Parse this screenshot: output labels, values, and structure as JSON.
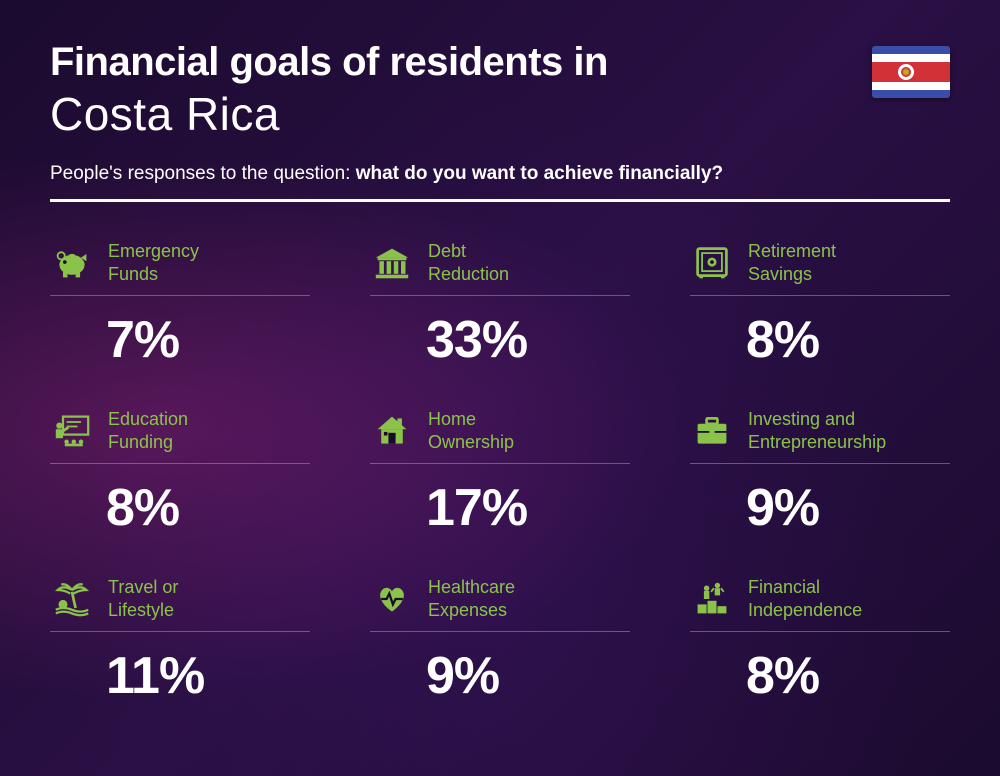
{
  "header": {
    "title_line1": "Financial goals of residents in",
    "title_line2": "Costa Rica",
    "subtitle_prefix": "People's responses to the question: ",
    "subtitle_bold": "what do you want to achieve financially?"
  },
  "flag": {
    "stripes": [
      {
        "color": "#3a4da8",
        "height": 8
      },
      {
        "color": "#ffffff",
        "height": 8
      },
      {
        "color": "#d03238",
        "height": 20
      },
      {
        "color": "#ffffff",
        "height": 8
      },
      {
        "color": "#3a4da8",
        "height": 8
      }
    ]
  },
  "accent_color": "#8bc34a",
  "items": [
    {
      "icon": "piggy",
      "label_l1": "Emergency",
      "label_l2": "Funds",
      "value": "7%"
    },
    {
      "icon": "bank",
      "label_l1": "Debt",
      "label_l2": "Reduction",
      "value": "33%"
    },
    {
      "icon": "safe",
      "label_l1": "Retirement",
      "label_l2": "Savings",
      "value": "8%"
    },
    {
      "icon": "education",
      "label_l1": "Education",
      "label_l2": "Funding",
      "value": "8%"
    },
    {
      "icon": "house",
      "label_l1": "Home",
      "label_l2": "Ownership",
      "value": "17%"
    },
    {
      "icon": "briefcase",
      "label_l1": "Investing and",
      "label_l2": "Entrepreneurship",
      "value": "9%"
    },
    {
      "icon": "palm",
      "label_l1": "Travel or",
      "label_l2": "Lifestyle",
      "value": "11%"
    },
    {
      "icon": "heart",
      "label_l1": "Healthcare",
      "label_l2": "Expenses",
      "value": "9%"
    },
    {
      "icon": "podium",
      "label_l1": "Financial",
      "label_l2": "Independence",
      "value": "8%"
    }
  ]
}
